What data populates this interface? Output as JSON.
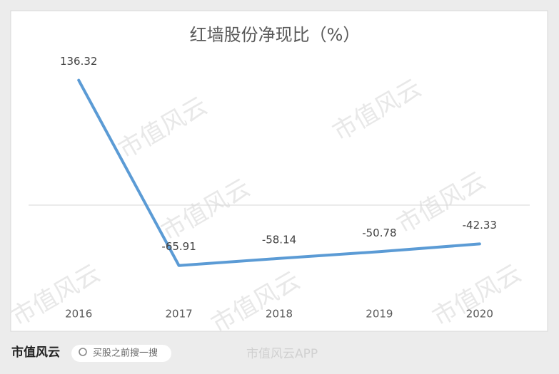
{
  "chart_data": {
    "type": "line",
    "title": "红墙股份净现比（%）",
    "categories": [
      "2016",
      "2017",
      "2018",
      "2019",
      "2020"
    ],
    "values": [
      136.32,
      -65.91,
      -58.14,
      -50.78,
      -42.33
    ],
    "color": "#5b9bd5",
    "ylim": [
      -100,
      150
    ]
  },
  "footer": {
    "brand": "市值风云",
    "search": "买股之前搜一搜",
    "app": "市值风云APP"
  },
  "watermark": "市值风云"
}
